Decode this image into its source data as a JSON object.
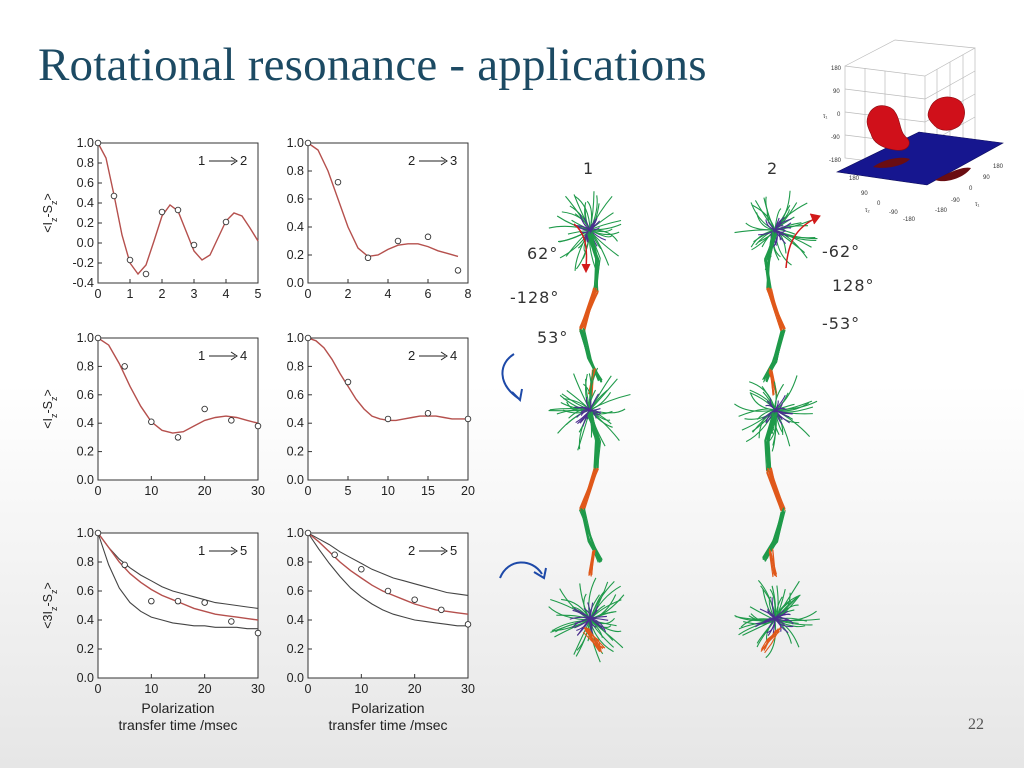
{
  "slide": {
    "title": "Rotational resonance - applications",
    "page_number": "22"
  },
  "colors": {
    "title": "#1c4a63",
    "fit_red": "#b5504d",
    "fit_gray": "#444444",
    "green": "#1f9a4a",
    "orange": "#e0581a",
    "purple": "#4b2e8f",
    "blue_arrow": "#1d49a8",
    "surface_red": "#d0101a",
    "surface_plane": "#16168f"
  },
  "chart_data": [
    {
      "id": "p1",
      "type": "scatter",
      "label": "1",
      "label_to": "2",
      "ylabel": "<I_z-S_z>",
      "xlim": [
        0,
        5
      ],
      "ylim": [
        -0.4,
        1.0
      ],
      "xticks": [
        "0",
        "1",
        "2",
        "3",
        "4",
        "5"
      ],
      "yticks": [
        "-0.4",
        "-0.2",
        "0.0",
        "0.2",
        "0.4",
        "0.6",
        "0.8",
        "1.0"
      ],
      "points": [
        [
          0,
          1.0
        ],
        [
          0.5,
          0.47
        ],
        [
          1.0,
          -0.17
        ],
        [
          1.5,
          -0.31
        ],
        [
          2.0,
          0.31
        ],
        [
          2.5,
          0.33
        ],
        [
          3.0,
          -0.02
        ],
        [
          4.0,
          0.21
        ]
      ],
      "fit": "red",
      "fit_curve": [
        [
          0,
          1.0
        ],
        [
          0.25,
          0.85
        ],
        [
          0.5,
          0.48
        ],
        [
          0.75,
          0.08
        ],
        [
          1.0,
          -0.2
        ],
        [
          1.25,
          -0.31
        ],
        [
          1.5,
          -0.22
        ],
        [
          1.75,
          0.02
        ],
        [
          2.0,
          0.27
        ],
        [
          2.25,
          0.38
        ],
        [
          2.5,
          0.32
        ],
        [
          2.75,
          0.12
        ],
        [
          3.0,
          -0.08
        ],
        [
          3.25,
          -0.17
        ],
        [
          3.5,
          -0.12
        ],
        [
          3.75,
          0.05
        ],
        [
          4.0,
          0.22
        ],
        [
          4.25,
          0.3
        ],
        [
          4.5,
          0.27
        ],
        [
          4.75,
          0.15
        ],
        [
          5.0,
          0.02
        ]
      ]
    },
    {
      "id": "p2",
      "type": "scatter",
      "label": "2",
      "label_to": "3",
      "ylabel": "",
      "xlim": [
        0,
        8
      ],
      "ylim": [
        0.0,
        1.0
      ],
      "xticks": [
        "0",
        "2",
        "4",
        "6",
        "8"
      ],
      "yticks": [
        "0.0",
        "0.2",
        "0.4",
        "0.6",
        "0.8",
        "1.0"
      ],
      "points": [
        [
          0,
          1.0
        ],
        [
          1.5,
          0.72
        ],
        [
          3.0,
          0.18
        ],
        [
          4.5,
          0.3
        ],
        [
          6.0,
          0.33
        ],
        [
          7.5,
          0.09
        ]
      ],
      "fit": "red",
      "fit_curve": [
        [
          0,
          1.0
        ],
        [
          0.5,
          0.95
        ],
        [
          1.0,
          0.8
        ],
        [
          1.5,
          0.6
        ],
        [
          2.0,
          0.4
        ],
        [
          2.5,
          0.25
        ],
        [
          3.0,
          0.19
        ],
        [
          3.5,
          0.2
        ],
        [
          4.0,
          0.24
        ],
        [
          4.5,
          0.27
        ],
        [
          5.0,
          0.28
        ],
        [
          5.5,
          0.28
        ],
        [
          6.0,
          0.26
        ],
        [
          6.5,
          0.23
        ],
        [
          7.0,
          0.21
        ],
        [
          7.5,
          0.19
        ]
      ]
    },
    {
      "id": "p3",
      "type": "scatter",
      "label": "1",
      "label_to": "4",
      "ylabel": "<I_z-S_z>",
      "xlim": [
        0,
        30
      ],
      "ylim": [
        0.0,
        1.0
      ],
      "xticks": [
        "0",
        "10",
        "20",
        "30"
      ],
      "yticks": [
        "0.0",
        "0.2",
        "0.4",
        "0.6",
        "0.8",
        "1.0"
      ],
      "points": [
        [
          0,
          1.0
        ],
        [
          5,
          0.8
        ],
        [
          10,
          0.41
        ],
        [
          15,
          0.3
        ],
        [
          20,
          0.5
        ],
        [
          25,
          0.42
        ],
        [
          30,
          0.38
        ]
      ],
      "fit": "red",
      "fit_curve": [
        [
          0,
          1.0
        ],
        [
          2,
          0.95
        ],
        [
          4,
          0.82
        ],
        [
          6,
          0.66
        ],
        [
          8,
          0.52
        ],
        [
          10,
          0.41
        ],
        [
          12,
          0.35
        ],
        [
          14,
          0.33
        ],
        [
          16,
          0.34
        ],
        [
          18,
          0.38
        ],
        [
          20,
          0.42
        ],
        [
          22,
          0.44
        ],
        [
          24,
          0.45
        ],
        [
          26,
          0.44
        ],
        [
          28,
          0.42
        ],
        [
          30,
          0.4
        ]
      ]
    },
    {
      "id": "p4",
      "type": "scatter",
      "label": "2",
      "label_to": "4",
      "ylabel": "",
      "xlim": [
        0,
        20
      ],
      "ylim": [
        0.0,
        1.0
      ],
      "xticks": [
        "0",
        "5",
        "10",
        "15",
        "20"
      ],
      "yticks": [
        "0.0",
        "0.2",
        "0.4",
        "0.6",
        "0.8",
        "1.0"
      ],
      "points": [
        [
          0,
          1.0
        ],
        [
          5,
          0.69
        ],
        [
          10,
          0.43
        ],
        [
          15,
          0.47
        ],
        [
          20,
          0.43
        ]
      ],
      "fit": "red",
      "fit_curve": [
        [
          0,
          1.0
        ],
        [
          1,
          0.98
        ],
        [
          2,
          0.93
        ],
        [
          3,
          0.85
        ],
        [
          4,
          0.75
        ],
        [
          5,
          0.66
        ],
        [
          6,
          0.57
        ],
        [
          7,
          0.5
        ],
        [
          8,
          0.45
        ],
        [
          9,
          0.43
        ],
        [
          10,
          0.42
        ],
        [
          11,
          0.42
        ],
        [
          12,
          0.43
        ],
        [
          13,
          0.44
        ],
        [
          14,
          0.45
        ],
        [
          15,
          0.45
        ],
        [
          16,
          0.45
        ],
        [
          17,
          0.44
        ],
        [
          18,
          0.43
        ],
        [
          19,
          0.43
        ],
        [
          20,
          0.43
        ]
      ]
    },
    {
      "id": "p5",
      "type": "scatter",
      "label": "1",
      "label_to": "5",
      "ylabel": "<3I_z-S_z>",
      "xlim": [
        0,
        30
      ],
      "ylim": [
        0.0,
        1.0
      ],
      "xticks": [
        "0",
        "10",
        "20",
        "30"
      ],
      "yticks": [
        "0.0",
        "0.2",
        "0.4",
        "0.6",
        "0.8",
        "1.0"
      ],
      "points": [
        [
          0,
          1.0
        ],
        [
          5,
          0.78
        ],
        [
          10,
          0.53
        ],
        [
          15,
          0.53
        ],
        [
          20,
          0.52
        ],
        [
          25,
          0.39
        ],
        [
          30,
          0.31
        ]
      ],
      "fit": "red",
      "fit_curve": [
        [
          0,
          1.0
        ],
        [
          2,
          0.9
        ],
        [
          4,
          0.8
        ],
        [
          6,
          0.72
        ],
        [
          8,
          0.66
        ],
        [
          10,
          0.61
        ],
        [
          12,
          0.57
        ],
        [
          14,
          0.54
        ],
        [
          16,
          0.51
        ],
        [
          18,
          0.48
        ],
        [
          20,
          0.46
        ],
        [
          22,
          0.44
        ],
        [
          24,
          0.43
        ],
        [
          26,
          0.42
        ],
        [
          28,
          0.41
        ],
        [
          30,
          0.4
        ]
      ],
      "envelope_curves": [
        [
          [
            0,
            1.0
          ],
          [
            2,
            0.9
          ],
          [
            4,
            0.82
          ],
          [
            6,
            0.76
          ],
          [
            8,
            0.71
          ],
          [
            10,
            0.67
          ],
          [
            12,
            0.63
          ],
          [
            14,
            0.6
          ],
          [
            16,
            0.58
          ],
          [
            18,
            0.56
          ],
          [
            20,
            0.54
          ],
          [
            22,
            0.52
          ],
          [
            24,
            0.51
          ],
          [
            26,
            0.5
          ],
          [
            28,
            0.49
          ],
          [
            30,
            0.48
          ]
        ],
        [
          [
            0,
            1.0
          ],
          [
            2,
            0.78
          ],
          [
            4,
            0.62
          ],
          [
            6,
            0.52
          ],
          [
            8,
            0.46
          ],
          [
            10,
            0.42
          ],
          [
            12,
            0.4
          ],
          [
            14,
            0.38
          ],
          [
            16,
            0.37
          ],
          [
            18,
            0.36
          ],
          [
            20,
            0.36
          ],
          [
            22,
            0.35
          ],
          [
            24,
            0.35
          ],
          [
            26,
            0.35
          ],
          [
            28,
            0.34
          ],
          [
            30,
            0.34
          ]
        ]
      ]
    },
    {
      "id": "p6",
      "type": "scatter",
      "label": "2",
      "label_to": "5",
      "ylabel": "",
      "xlim": [
        0,
        30
      ],
      "ylim": [
        0.0,
        1.0
      ],
      "xticks": [
        "0",
        "10",
        "20",
        "30"
      ],
      "yticks": [
        "0.0",
        "0.2",
        "0.4",
        "0.6",
        "0.8",
        "1.0"
      ],
      "points": [
        [
          0,
          1.0
        ],
        [
          5,
          0.85
        ],
        [
          10,
          0.75
        ],
        [
          15,
          0.6
        ],
        [
          20,
          0.54
        ],
        [
          25,
          0.47
        ],
        [
          30,
          0.37
        ]
      ],
      "fit": "red",
      "fit_curve": [
        [
          0,
          1.0
        ],
        [
          2,
          0.94
        ],
        [
          4,
          0.87
        ],
        [
          6,
          0.8
        ],
        [
          8,
          0.74
        ],
        [
          10,
          0.69
        ],
        [
          12,
          0.64
        ],
        [
          14,
          0.6
        ],
        [
          16,
          0.57
        ],
        [
          18,
          0.54
        ],
        [
          20,
          0.51
        ],
        [
          22,
          0.49
        ],
        [
          24,
          0.47
        ],
        [
          26,
          0.46
        ],
        [
          28,
          0.45
        ],
        [
          30,
          0.44
        ]
      ],
      "envelope_curves": [
        [
          [
            0,
            1.0
          ],
          [
            2,
            0.96
          ],
          [
            4,
            0.92
          ],
          [
            6,
            0.87
          ],
          [
            8,
            0.83
          ],
          [
            10,
            0.79
          ],
          [
            12,
            0.75
          ],
          [
            14,
            0.72
          ],
          [
            16,
            0.69
          ],
          [
            18,
            0.67
          ],
          [
            20,
            0.65
          ],
          [
            22,
            0.63
          ],
          [
            24,
            0.61
          ],
          [
            26,
            0.59
          ],
          [
            28,
            0.58
          ],
          [
            30,
            0.57
          ]
        ],
        [
          [
            0,
            1.0
          ],
          [
            2,
            0.89
          ],
          [
            4,
            0.79
          ],
          [
            6,
            0.7
          ],
          [
            8,
            0.62
          ],
          [
            10,
            0.56
          ],
          [
            12,
            0.51
          ],
          [
            14,
            0.47
          ],
          [
            16,
            0.44
          ],
          [
            18,
            0.42
          ],
          [
            20,
            0.4
          ],
          [
            22,
            0.39
          ],
          [
            24,
            0.38
          ],
          [
            26,
            0.37
          ],
          [
            28,
            0.36
          ],
          [
            30,
            0.36
          ]
        ]
      ]
    }
  ],
  "x_axis_label": {
    "line1": "Polarization",
    "line2": "transfer time /msec"
  },
  "molecules": {
    "column_labels": [
      "1",
      "2"
    ],
    "angles_left": [
      "62°",
      "-128°",
      "53°"
    ],
    "angles_right": [
      "-62°",
      "128°",
      "-53°"
    ]
  },
  "surface_plot": {
    "z_ticks": [
      "180",
      "90",
      "0",
      "-90",
      "-180"
    ],
    "z_label": "τ₁",
    "x_ticks": [
      "180",
      "90",
      "0",
      "-90",
      "-180"
    ],
    "x_label": "τ₂",
    "y_ticks": [
      "-180",
      "-90",
      "0",
      "90",
      "180"
    ],
    "y_label": "τ₁"
  }
}
